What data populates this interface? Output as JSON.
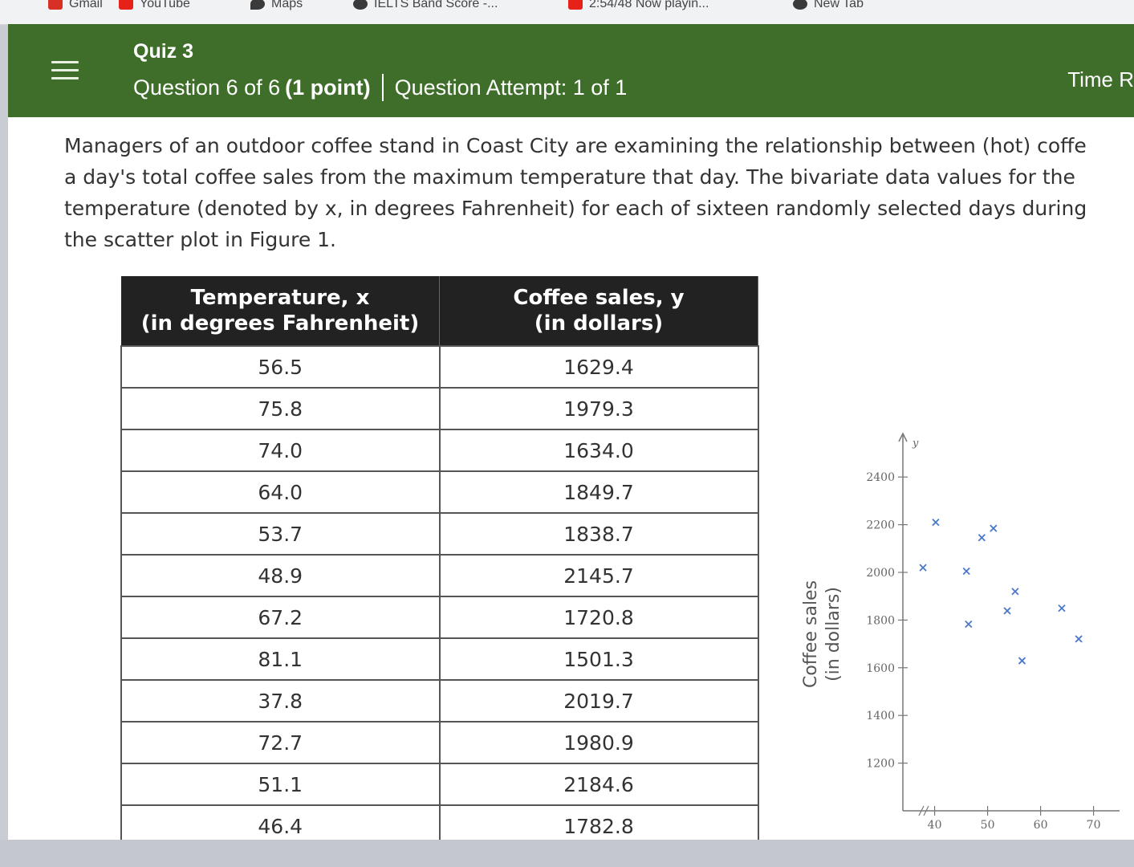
{
  "bookmarks": [
    {
      "label": "Gmail",
      "color": "#d93025"
    },
    {
      "label": "YouTube",
      "color": "#e62117"
    },
    {
      "label": "Maps",
      "color": "#3a3a3a"
    },
    {
      "label": "IELTS Band Score -...",
      "color": "#3a3a3a"
    },
    {
      "label": "2:54/48 Now playin...",
      "color": "#e62117"
    },
    {
      "label": "New Tab",
      "color": "#3a3a3a"
    }
  ],
  "header": {
    "quiz_title": "Quiz 3",
    "question_position": "Question 6 of 6",
    "points": "(1 point)",
    "attempt": "Question Attempt: 1 of 1",
    "timer_label": "Time R"
  },
  "prompt_lines": [
    "Managers of an outdoor coffee stand in Coast City are examining the relationship between (hot) coffe",
    "a day's total coffee sales from the maximum temperature that day. The bivariate data values for the",
    "temperature (denoted by x, in degrees Fahrenheit) for each of sixteen randomly selected days during",
    "the scatter plot in Figure 1."
  ],
  "table": {
    "col1_header_line1": "Temperature, x",
    "col1_header_line2": "(in degrees Fahrenheit)",
    "col2_header_line1": "Coffee sales, y",
    "col2_header_line2": "(in dollars)",
    "rows": [
      [
        "56.5",
        "1629.4"
      ],
      [
        "75.8",
        "1979.3"
      ],
      [
        "74.0",
        "1634.0"
      ],
      [
        "64.0",
        "1849.7"
      ],
      [
        "53.7",
        "1838.7"
      ],
      [
        "48.9",
        "2145.7"
      ],
      [
        "67.2",
        "1720.8"
      ],
      [
        "81.1",
        "1501.3"
      ],
      [
        "37.8",
        "2019.7"
      ],
      [
        "72.7",
        "1980.9"
      ],
      [
        "51.1",
        "2184.6"
      ],
      [
        "46.4",
        "1782.8"
      ]
    ]
  },
  "chart_data": {
    "type": "scatter",
    "title": "",
    "xlabel": "",
    "ylabel": "Coffee sales (in dollars)",
    "ylabel_line1": "Coffee sales",
    "ylabel_line2": "(in dollars)",
    "y_axis_symbol": "y",
    "y_ticks": [
      1200,
      1400,
      1600,
      1800,
      2000,
      2200,
      2400
    ],
    "x_ticks": [
      40,
      50,
      60,
      70
    ],
    "xlim": [
      34,
      71
    ],
    "ylim": [
      1000,
      2600
    ],
    "marker_color": "#4a78c8",
    "points": [
      {
        "x": 37.8,
        "y": 2019.7
      },
      {
        "x": 40.2,
        "y": 2210
      },
      {
        "x": 46.4,
        "y": 1782.8
      },
      {
        "x": 48.9,
        "y": 2145.7
      },
      {
        "x": 46.0,
        "y": 2005
      },
      {
        "x": 51.1,
        "y": 2184.6
      },
      {
        "x": 53.7,
        "y": 1838.7
      },
      {
        "x": 55.2,
        "y": 1920
      },
      {
        "x": 56.5,
        "y": 1629.4
      },
      {
        "x": 64.0,
        "y": 1849.7
      },
      {
        "x": 67.2,
        "y": 1720.8
      }
    ]
  }
}
